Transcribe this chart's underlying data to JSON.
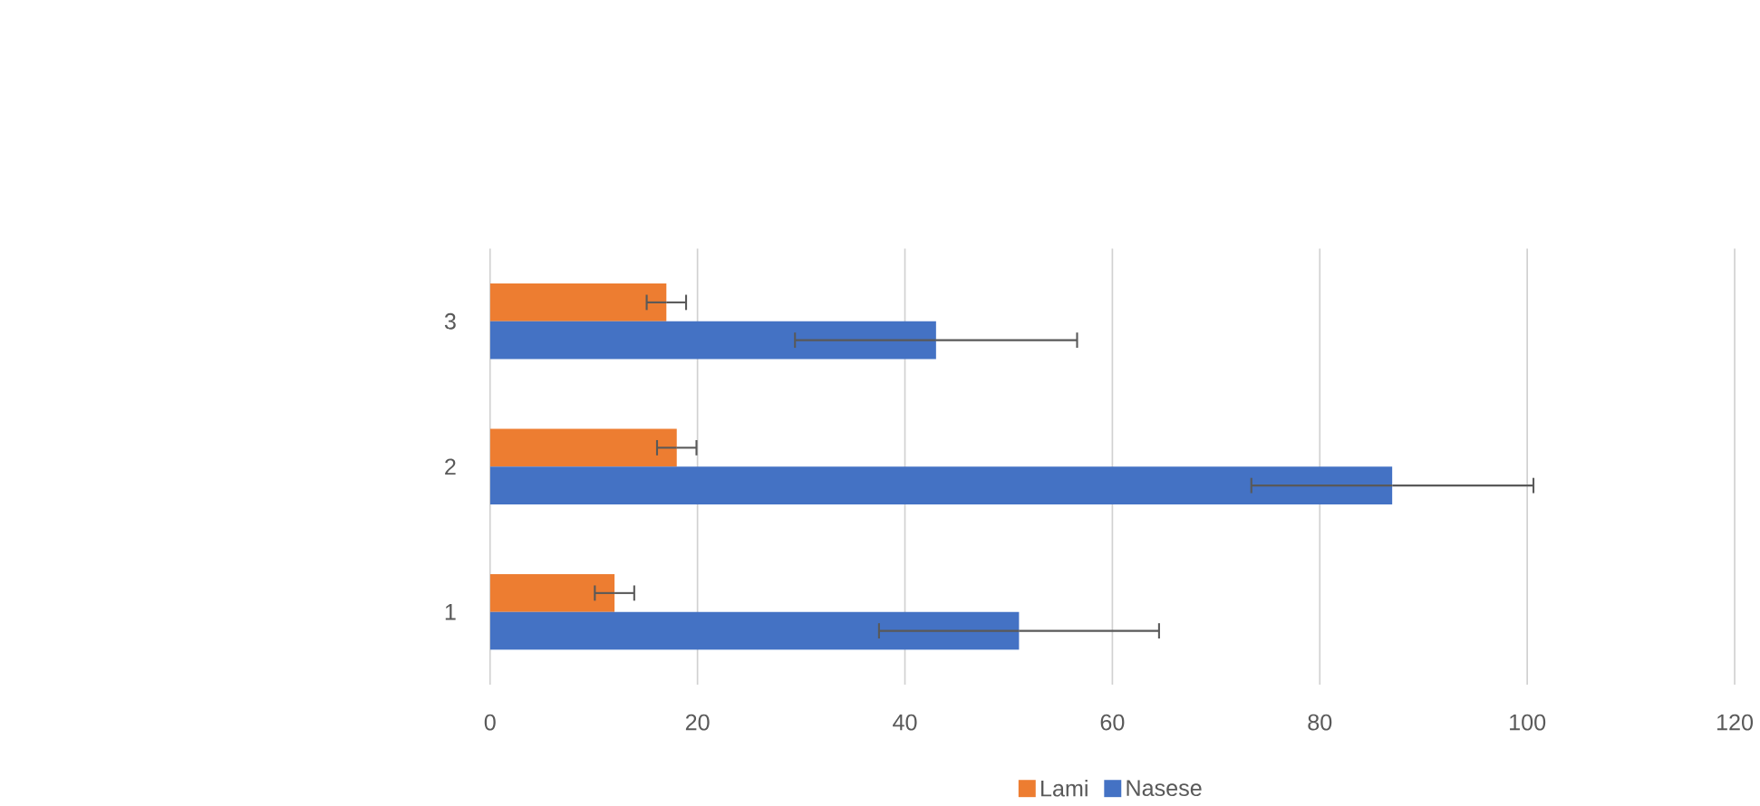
{
  "chart_data": {
    "type": "bar",
    "orientation": "horizontal",
    "categories": [
      "3",
      "2",
      "1"
    ],
    "series": [
      {
        "name": "Lami",
        "color": "#ed7d31",
        "values": [
          17,
          18,
          12
        ],
        "errors": [
          1.9,
          1.9,
          1.9
        ]
      },
      {
        "name": "Nasese",
        "color": "#4472c4",
        "values": [
          43,
          87,
          51
        ],
        "errors": [
          13.6,
          13.6,
          13.5
        ]
      }
    ],
    "xlim": [
      0,
      120
    ],
    "xticks": [
      0,
      20,
      40,
      60,
      80,
      100,
      120
    ],
    "grid": "x",
    "legend": "bottom"
  }
}
